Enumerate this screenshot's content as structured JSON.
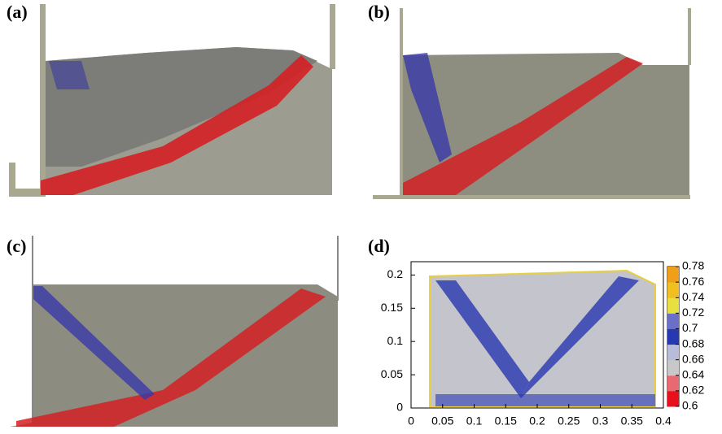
{
  "panels": [
    {
      "label": "(a)"
    },
    {
      "label": "(b)"
    },
    {
      "label": "(c)"
    },
    {
      "label": "(d)"
    }
  ],
  "panel_d": {
    "xlim": [
      0,
      0.4
    ],
    "xticks": [
      0,
      0.05,
      0.1,
      0.15,
      0.2,
      0.25,
      0.3,
      0.35,
      0.4
    ],
    "ylim": [
      0,
      0.22
    ],
    "yticks": [
      0,
      0.05,
      0.1,
      0.15,
      0.2
    ],
    "colorbar": {
      "lim": [
        0.6,
        0.78
      ],
      "ticks": [
        0.6,
        0.62,
        0.64,
        0.66,
        0.68,
        0.7,
        0.72,
        0.74,
        0.76,
        0.78
      ],
      "colors": [
        "#e8101a",
        "#e86a70",
        "#c8c8c8",
        "#b8bcd8",
        "#2838b0",
        "#6a70c8",
        "#e8e040",
        "#f0c020",
        "#f0a018"
      ]
    }
  }
}
